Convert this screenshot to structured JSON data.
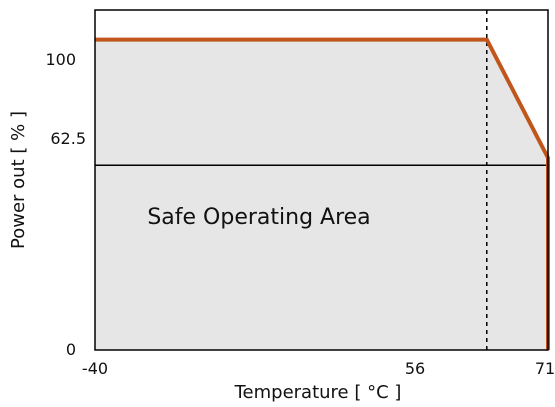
{
  "chart_data": {
    "type": "area",
    "title": "",
    "xlabel": "Temperature [ °C ]",
    "ylabel": "Power out [ % ]",
    "x_ticks": [
      "-40",
      "56",
      "71"
    ],
    "y_ticks": [
      "0",
      "62.5",
      "100"
    ],
    "xlim": [
      -40,
      71
    ],
    "ylim": [
      0,
      115
    ],
    "series": [
      {
        "x": [
          -40,
          56,
          71,
          71
        ],
        "y": [
          105,
          105,
          65,
          0
        ]
      }
    ],
    "reference_lines": [
      {
        "orientation": "vertical",
        "value": 56,
        "style": "dashed"
      },
      {
        "orientation": "horizontal",
        "value": 62.5,
        "style": "solid"
      }
    ],
    "region_label": "Safe Operating Area",
    "grid": false
  },
  "colors": {
    "curve": "#C0561B",
    "area_fill": "#E6E6E6",
    "axis": "#000000"
  }
}
